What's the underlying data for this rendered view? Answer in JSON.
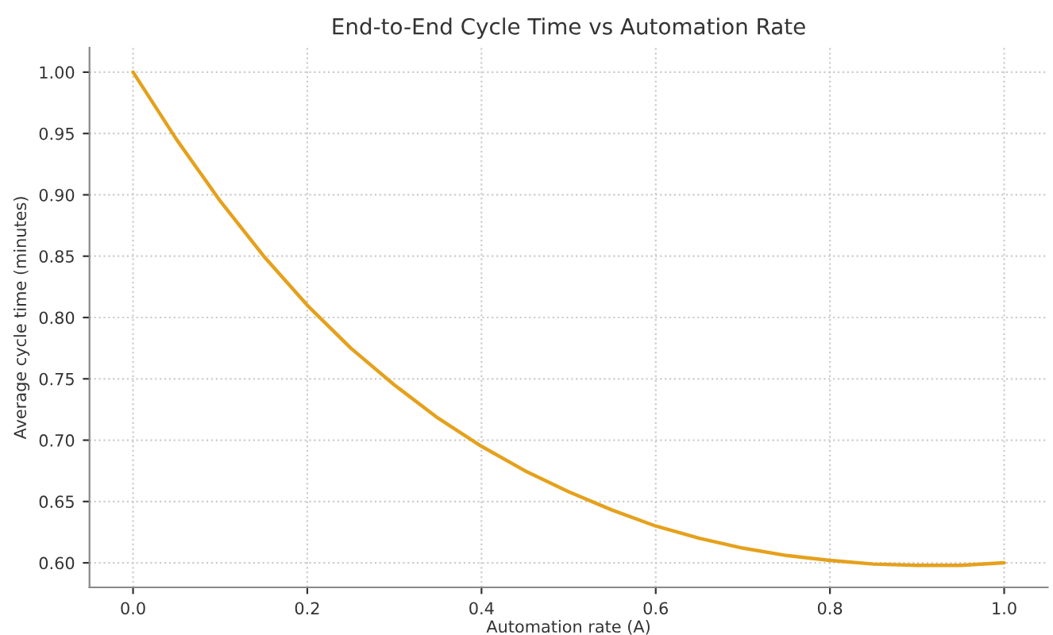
{
  "chart_data": {
    "type": "line",
    "title": "End-to-End Cycle Time vs Automation Rate",
    "xlabel": "Automation rate (A)",
    "ylabel": "Average cycle time (minutes)",
    "x": [
      0.0,
      0.05,
      0.1,
      0.15,
      0.2,
      0.25,
      0.3,
      0.35,
      0.4,
      0.45,
      0.5,
      0.55,
      0.6,
      0.65,
      0.7,
      0.75,
      0.8,
      0.85,
      0.9,
      0.95,
      1.0
    ],
    "series": [
      {
        "color": "#e5a11c",
        "values": [
          1.0,
          0.945,
          0.895,
          0.85,
          0.81,
          0.775,
          0.745,
          0.718,
          0.695,
          0.675,
          0.658,
          0.643,
          0.63,
          0.62,
          0.612,
          0.606,
          0.602,
          0.599,
          0.598,
          0.598,
          0.6
        ]
      }
    ],
    "xlim": [
      -0.05,
      1.05
    ],
    "ylim": [
      0.58,
      1.02
    ],
    "xticks": [
      {
        "value": 0.0,
        "label": "0.0"
      },
      0.2,
      0.4,
      0.6,
      0.8,
      {
        "value": 1.0,
        "label": "1.0"
      }
    ],
    "yticks": [
      {
        "value": 0.6,
        "label": "0.60"
      },
      {
        "value": 0.65,
        "label": "0.65"
      },
      {
        "value": 0.7,
        "label": "0.70"
      },
      {
        "value": 0.75,
        "label": "0.75"
      },
      {
        "value": 0.8,
        "label": "0.80"
      },
      {
        "value": 0.85,
        "label": "0.85"
      },
      {
        "value": 0.9,
        "label": "0.90"
      },
      {
        "value": 0.95,
        "label": "0.95"
      },
      {
        "value": 1.0,
        "label": "1.00"
      }
    ],
    "grid": true,
    "line_style": "solid",
    "marker": "none"
  }
}
